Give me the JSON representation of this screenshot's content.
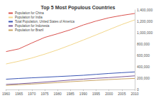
{
  "chart_data": {
    "type": "line",
    "title": "Top 5 Most Populous Countries",
    "x": [
      1960,
      1965,
      1970,
      1975,
      1980,
      1985,
      1990,
      1995,
      2000,
      2005,
      2010
    ],
    "series": [
      {
        "name": "Population for China",
        "color": "#d9534f",
        "values": [
          667070,
          715185,
          818315,
          916395,
          981235,
          1051040,
          1135185,
          1204855,
          1262645,
          1303720,
          1337705
        ]
      },
      {
        "name": "Population for India",
        "color": "#f2d68a",
        "values": [
          449480,
          497702,
          553943,
          621704,
          697230,
          781667,
          870133,
          960875,
          1053050,
          1144119,
          1224614
        ]
      },
      {
        "name": "Total Population, United States of America",
        "color": "#3a55b4",
        "values": [
          180671,
          194303,
          205052,
          215973,
          227225,
          237924,
          249623,
          266278,
          282162,
          295517,
          309349
        ]
      },
      {
        "name": "Population for Indonesia",
        "color": "#7a5a9c",
        "values": [
          88693,
          100309,
          114067,
          130680,
          148177,
          165792,
          181437,
          196958,
          208939,
          224481,
          239871
        ]
      },
      {
        "name": "Population for Brazil",
        "color": "#c9a464",
        "values": [
          72207,
          83567,
          95326,
          107612,
          121618,
          136836,
          149650,
          161848,
          174425,
          186075,
          194946
        ]
      }
    ],
    "xlim": [
      1960,
      2010
    ],
    "xticks": [
      1960,
      1965,
      1970,
      1975,
      1980,
      1985,
      1990,
      1995,
      2000,
      2005,
      2010
    ],
    "ylim": [
      0,
      1400000
    ],
    "yticks": [
      0,
      {
        "value": 200000,
        "label": "200,000"
      },
      {
        "value": 400000,
        "label": "400,000"
      },
      {
        "value": 600000,
        "label": "600,000"
      },
      {
        "value": 800000,
        "label": "800,000"
      },
      {
        "value": 1000000,
        "label": "1,000,000"
      },
      {
        "value": 1200000,
        "label": "1,200,000"
      },
      {
        "value": 1400000,
        "label": "1,400,000"
      }
    ],
    "grid": false,
    "legend": "upper left"
  }
}
